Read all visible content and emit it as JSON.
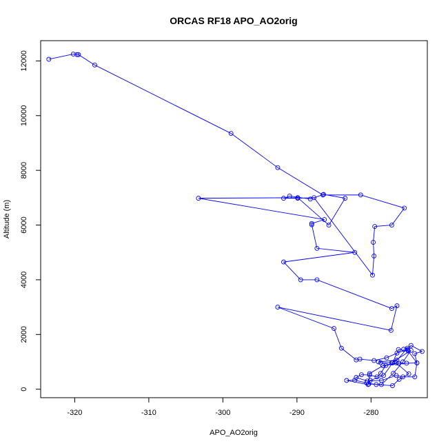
{
  "chart_data": {
    "type": "line",
    "title": "ORCAS RF18 APO_AO2orig",
    "xlabel": "APO_AO2orig",
    "ylabel": "Altitude (m)",
    "xlim": [
      -324.6,
      -272.4
    ],
    "ylim": [
      -310,
      12740
    ],
    "xticks": [
      -320,
      -310,
      -300,
      -290,
      -280
    ],
    "yticks": [
      0,
      2000,
      4000,
      6000,
      8000,
      10000,
      12000
    ],
    "xtick_labels": [
      "-320",
      "-310",
      "-300",
      "-290",
      "-280"
    ],
    "ytick_labels": [
      "0",
      "2000",
      "4000",
      "6000",
      "8000",
      "10000",
      "12000"
    ],
    "grid": false,
    "color": "#0000ff",
    "marker": "open-circle",
    "series": [
      {
        "x": [
          -323.5,
          -320.2,
          -319.7,
          -319.5,
          -317.3,
          -298.9,
          -292.6,
          -286.5,
          -281.4,
          -275.5,
          -277.2,
          -279.5,
          -279.7,
          -279.6,
          -279.8,
          -287.7,
          -289.9,
          -291.8,
          -291.0,
          -288.2,
          -286.4,
          -283.5,
          -285.7,
          -289.9,
          -303.3,
          -286.3,
          -288.0,
          -288.0,
          -287.3,
          -282.2,
          -291.8,
          -289.5,
          -287.3,
          -277.2,
          -276.5,
          -277.3,
          -292.6,
          -285.0,
          -284.0,
          -282.0,
          -281.5,
          -279.6,
          -277.9,
          -276.5,
          -275.1,
          -274.6,
          -273.1,
          -274.1,
          -273.8,
          -275.2,
          -276.3,
          -278.0,
          -278.7,
          -279.2,
          -280.2,
          -281.3,
          -282.0,
          -280.5,
          -278.6,
          -276.6,
          -275.7,
          -274.1,
          -273.8,
          -275.0,
          -276.3,
          -277.1,
          -278.3,
          -280.1,
          -280.4,
          -283.3,
          -282.2,
          -280.6,
          -279.3,
          -277.1,
          -276.2,
          -274.9,
          -276.6,
          -278.4,
          -280.2,
          -280.3,
          -278.6,
          -277.0,
          -275.7,
          -274.6,
          -277.2,
          -278.7,
          -279.0,
          -276.5,
          -275.1,
          -275.6
        ],
        "y": [
          12060,
          12250,
          12230,
          12230,
          11850,
          9350,
          8100,
          7100,
          7100,
          6620,
          6000,
          5950,
          5370,
          4870,
          4170,
          7000,
          6980,
          6980,
          7060,
          6950,
          7120,
          6980,
          6000,
          7000,
          6980,
          6200,
          6060,
          6010,
          5150,
          5000,
          4650,
          4000,
          4000,
          2950,
          3050,
          2150,
          3000,
          2220,
          1500,
          1070,
          1100,
          1050,
          1150,
          1320,
          1450,
          1600,
          1380,
          1300,
          960,
          950,
          950,
          870,
          580,
          450,
          520,
          530,
          430,
          300,
          320,
          500,
          450,
          450,
          960,
          1400,
          1450,
          960,
          500,
          320,
          170,
          320,
          330,
          230,
          170,
          130,
          360,
          560,
          960,
          860,
          570,
          190,
          170,
          580,
          1000,
          1420,
          970,
          970,
          1000,
          1060,
          1500,
          1460
        ]
      }
    ]
  }
}
